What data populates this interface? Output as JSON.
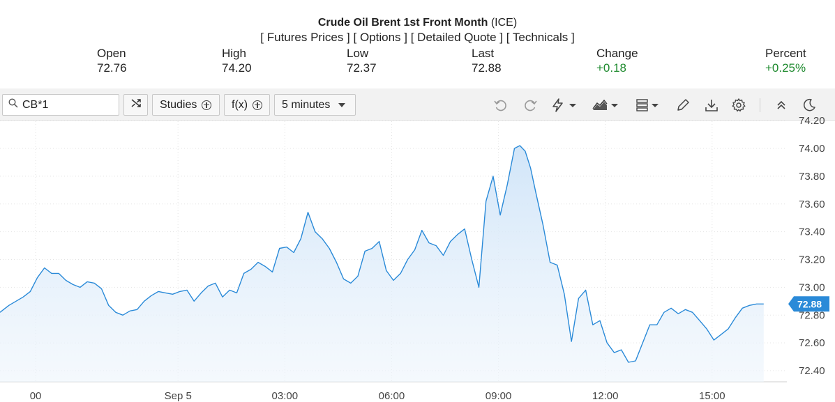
{
  "header": {
    "title_bold": "Crude Oil Brent 1st Front Month",
    "title_suffix": "(ICE)",
    "links": [
      "Futures Prices",
      "Options",
      "Detailed Quote",
      "Technicals"
    ]
  },
  "stats": [
    {
      "label": "Open",
      "value": "72.76"
    },
    {
      "label": "High",
      "value": "74.20"
    },
    {
      "label": "Low",
      "value": "72.37"
    },
    {
      "label": "Last",
      "value": "72.88"
    },
    {
      "label": "Change",
      "value": "+0.18"
    },
    {
      "label": "Percent",
      "value": "+0.25%"
    }
  ],
  "colors": {
    "positive": "#1e8a2e",
    "line": "#2a8ad8",
    "badge": "#2a8ad8"
  },
  "toolbar": {
    "symbol": "CB*1",
    "studies_label": "Studies",
    "fx_label": "f(x)",
    "interval_label": "5 minutes",
    "icons": [
      "search-icon",
      "shuffle-icon",
      "undo-icon",
      "redo-icon",
      "lightning-icon",
      "area-chart-icon",
      "layout-icon",
      "pencil-icon",
      "download-icon",
      "gear-icon",
      "collapse-icon",
      "moon-icon"
    ]
  },
  "chart_data": {
    "type": "area",
    "title": "",
    "xlabel": "",
    "ylabel": "",
    "ylim": [
      72.36,
      74.2
    ],
    "yticks": [
      74.2,
      74.0,
      73.8,
      73.6,
      73.4,
      73.2,
      73.0,
      72.8,
      72.6,
      72.4
    ],
    "ytick_labels": [
      "74.20",
      "74.00",
      "73.80",
      "73.60",
      "73.40",
      "73.20",
      "73.00",
      "72.80",
      "72.60",
      "72.40"
    ],
    "xticks": [
      {
        "label": "00",
        "t": -4.0
      },
      {
        "label": "Sep 5",
        "t": 0.0
      },
      {
        "label": "03:00",
        "t": 3.0
      },
      {
        "label": "06:00",
        "t": 6.0
      },
      {
        "label": "09:00",
        "t": 9.0
      },
      {
        "label": "12:00",
        "t": 12.0
      },
      {
        "label": "15:00",
        "t": 15.0
      }
    ],
    "x_range_hours": [
      -5.0,
      17.1
    ],
    "last_value": "72.88",
    "grid": true,
    "series": [
      {
        "t_hours": [
          -5.0,
          -4.75,
          -4.55,
          -4.35,
          -4.15,
          -3.95,
          -3.75,
          -3.55,
          -3.35,
          -3.15,
          -2.95,
          -2.75,
          -2.55,
          -2.35,
          -2.15,
          -1.95,
          -1.75,
          -1.55,
          -1.35,
          -1.15,
          -0.95,
          -0.75,
          -0.55,
          -0.35,
          -0.15,
          0.05,
          0.25,
          0.45,
          0.65,
          0.85,
          1.05,
          1.25,
          1.45,
          1.65,
          1.85,
          2.05,
          2.25,
          2.45,
          2.65,
          2.85,
          3.05,
          3.25,
          3.45,
          3.65,
          3.85,
          4.05,
          4.25,
          4.45,
          4.65,
          4.85,
          5.05,
          5.25,
          5.45,
          5.65,
          5.85,
          6.05,
          6.25,
          6.45,
          6.65,
          6.85,
          7.05,
          7.25,
          7.45,
          7.65,
          7.85,
          8.05,
          8.25,
          8.45,
          8.65,
          8.85,
          9.05,
          9.25,
          9.45,
          9.6,
          9.75,
          9.9,
          10.05,
          10.25,
          10.45,
          10.65,
          10.85,
          11.05,
          11.25,
          11.45,
          11.65,
          11.85,
          12.05,
          12.25,
          12.45,
          12.65,
          12.85,
          13.05,
          13.25,
          13.45,
          13.65,
          13.85,
          14.05,
          14.25,
          14.45,
          14.65,
          14.85,
          15.05,
          15.25,
          15.45,
          15.65,
          15.85,
          16.05,
          16.25,
          16.45
        ],
        "values": [
          72.82,
          72.87,
          72.9,
          72.93,
          72.97,
          73.07,
          73.14,
          73.1,
          73.1,
          73.05,
          73.02,
          73.0,
          73.04,
          73.03,
          72.99,
          72.87,
          72.82,
          72.8,
          72.83,
          72.84,
          72.9,
          72.94,
          72.97,
          72.96,
          72.95,
          72.97,
          72.98,
          72.9,
          72.96,
          73.01,
          73.03,
          72.93,
          72.98,
          72.96,
          73.1,
          73.13,
          73.18,
          73.15,
          73.11,
          73.28,
          73.29,
          73.25,
          73.35,
          73.54,
          73.4,
          73.35,
          73.28,
          73.18,
          73.06,
          73.03,
          73.08,
          73.26,
          73.28,
          73.33,
          73.12,
          73.05,
          73.1,
          73.2,
          73.27,
          73.41,
          73.32,
          73.3,
          73.23,
          73.33,
          73.38,
          73.42,
          73.2,
          73.0,
          73.62,
          73.8,
          73.52,
          73.74,
          74.0,
          74.02,
          73.98,
          73.86,
          73.68,
          73.45,
          73.18,
          73.16,
          72.95,
          72.61,
          72.92,
          72.98,
          72.73,
          72.76,
          72.6,
          72.53,
          72.55,
          72.46,
          72.47,
          72.6,
          72.73,
          72.73,
          72.82,
          72.85,
          72.81,
          72.84,
          72.82,
          72.76,
          72.7,
          72.62,
          72.66,
          72.7,
          72.78,
          72.85,
          72.87,
          72.88,
          72.88
        ]
      }
    ]
  }
}
